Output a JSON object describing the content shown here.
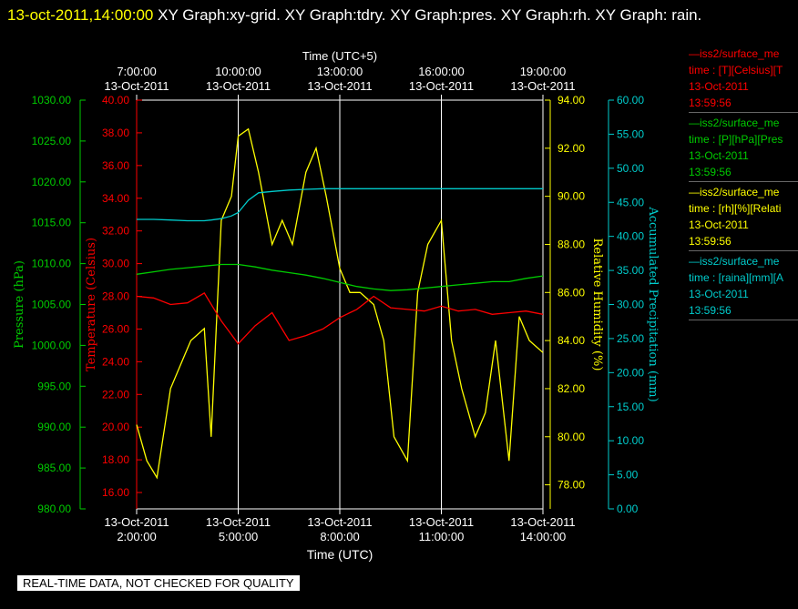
{
  "header": {
    "timestamp": "13-oct-2011,14:00:00",
    "title": "XY Graph:xy-grid.  XY Graph:tdry.  XY Graph:pres.  XY Graph:rh.  XY Graph: rain."
  },
  "warning": "REAL-TIME DATA, NOT CHECKED FOR QUALITY",
  "colors": {
    "pressure": "#00cc00",
    "temperature": "#ff0000",
    "humidity": "#ffff00",
    "rain": "#00cccc",
    "grid": "#ffffff"
  },
  "legend": [
    {
      "color": "#ff0000",
      "name": "—iss2/surface_me",
      "var": "time : [T][Celsius][T",
      "date": "13-Oct-2011",
      "time": "13:59:56"
    },
    {
      "color": "#00cc00",
      "name": "—iss2/surface_me",
      "var": "time : [P][hPa][Pres",
      "date": "13-Oct-2011",
      "time": "13:59:56"
    },
    {
      "color": "#ffff00",
      "name": "—iss2/surface_me",
      "var": "time : [rh][%][Relati",
      "date": "13-Oct-2011",
      "time": "13:59:56"
    },
    {
      "color": "#00cccc",
      "name": "—iss2/surface_me",
      "var": "time : [raina][mm][A",
      "date": "13-Oct-2011",
      "time": "13:59:56"
    }
  ],
  "chart_data": {
    "type": "line",
    "xlabel_bottom": "Time (UTC)",
    "xlabel_top": "Time (UTC+5)",
    "x_range_hours": [
      2,
      14
    ],
    "x_ticks_bottom": [
      {
        "h": 2,
        "date": "13-Oct-2011",
        "time": "2:00:00"
      },
      {
        "h": 5,
        "date": "13-Oct-2011",
        "time": "5:00:00"
      },
      {
        "h": 8,
        "date": "13-Oct-2011",
        "time": "8:00:00"
      },
      {
        "h": 11,
        "date": "13-Oct-2011",
        "time": "11:00:00"
      },
      {
        "h": 14,
        "date": "13-Oct-2011",
        "time": "14:00:00"
      }
    ],
    "x_ticks_top": [
      {
        "h": 2,
        "time": "7:00:00",
        "date": "13-Oct-2011"
      },
      {
        "h": 5,
        "time": "10:00:00",
        "date": "13-Oct-2011"
      },
      {
        "h": 8,
        "time": "13:00:00",
        "date": "13-Oct-2011"
      },
      {
        "h": 11,
        "time": "16:00:00",
        "date": "13-Oct-2011"
      },
      {
        "h": 14,
        "time": "19:00:00",
        "date": "13-Oct-2011"
      }
    ],
    "grid": true,
    "axes": {
      "pressure": {
        "label": "Pressure (hPa)",
        "range": [
          980,
          1030
        ],
        "ticks": [
          "980.00",
          "985.00",
          "990.00",
          "995.00",
          "1000.00",
          "1005.00",
          "1010.00",
          "1015.00",
          "1020.00",
          "1025.00",
          "1030.00"
        ]
      },
      "temperature": {
        "label": "Temperature (Celsius)",
        "range": [
          15,
          40
        ],
        "ticks": [
          "16.00",
          "18.00",
          "20.00",
          "22.00",
          "24.00",
          "26.00",
          "28.00",
          "30.00",
          "32.00",
          "34.00",
          "36.00",
          "38.00",
          "40.00"
        ]
      },
      "humidity": {
        "label": "Relative Humidity (%)",
        "range": [
          77,
          94
        ],
        "ticks": [
          "78.00",
          "80.00",
          "82.00",
          "84.00",
          "86.00",
          "88.00",
          "90.00",
          "92.00",
          "94.00"
        ]
      },
      "rain": {
        "label": "Accumulated Precipitation (mm)",
        "range": [
          0,
          60
        ],
        "ticks": [
          "0.00",
          "5.00",
          "10.00",
          "15.00",
          "20.00",
          "25.00",
          "30.00",
          "35.00",
          "40.00",
          "45.00",
          "50.00",
          "55.00",
          "60.00"
        ]
      }
    },
    "series": [
      {
        "key": "temperature",
        "color": "#ff0000",
        "x": [
          2,
          2.5,
          3,
          3.5,
          4,
          4.5,
          5,
          5.5,
          6,
          6.5,
          7,
          7.5,
          8,
          8.5,
          9,
          9.5,
          10,
          10.5,
          11,
          11.5,
          12,
          12.5,
          13,
          13.5,
          14
        ],
        "y": [
          28,
          27.9,
          27.5,
          27.6,
          28.2,
          26.5,
          25.1,
          26.2,
          27.0,
          25.3,
          25.6,
          26.0,
          26.7,
          27.2,
          28.0,
          27.3,
          27.2,
          27.1,
          27.4,
          27.1,
          27.2,
          26.9,
          27.0,
          27.1,
          26.9
        ]
      },
      {
        "key": "pressure",
        "color": "#00cc00",
        "x": [
          2,
          2.5,
          3,
          3.5,
          4,
          4.5,
          5,
          5.5,
          6,
          6.5,
          7,
          7.5,
          8,
          8.5,
          9,
          9.5,
          10,
          10.5,
          11,
          11.5,
          12,
          12.5,
          13,
          13.5,
          14
        ],
        "y": [
          1008.7,
          1009.0,
          1009.3,
          1009.5,
          1009.7,
          1009.9,
          1009.9,
          1009.6,
          1009.2,
          1008.9,
          1008.6,
          1008.2,
          1007.7,
          1007.2,
          1006.9,
          1006.7,
          1006.8,
          1007.0,
          1007.2,
          1007.4,
          1007.6,
          1007.8,
          1007.8,
          1008.2,
          1008.5
        ]
      },
      {
        "key": "humidity",
        "color": "#ffff00",
        "x": [
          2,
          2.3,
          2.6,
          3,
          3.3,
          3.6,
          4,
          4.2,
          4.5,
          4.8,
          5,
          5.3,
          5.6,
          6,
          6.3,
          6.6,
          7,
          7.3,
          7.6,
          8,
          8.3,
          8.6,
          9,
          9.3,
          9.6,
          10,
          10.3,
          10.6,
          11,
          11.3,
          11.6,
          12,
          12.3,
          12.6,
          13,
          13.3,
          13.6,
          14
        ],
        "y": [
          80.5,
          79.0,
          78.3,
          82,
          83,
          84,
          84.5,
          80,
          89,
          90,
          92.5,
          92.8,
          91,
          88,
          89,
          88,
          91,
          92,
          90,
          87,
          86,
          86,
          85.5,
          84,
          80,
          79,
          86,
          88,
          89,
          84,
          82,
          80,
          81,
          84,
          79,
          85,
          84,
          83.5
        ]
      },
      {
        "key": "rain",
        "color": "#00cccc",
        "x": [
          2,
          2.5,
          3,
          3.5,
          4,
          4.2,
          4.5,
          4.8,
          5,
          5.3,
          5.6,
          6,
          6.5,
          7,
          7.5,
          8,
          8.5,
          9,
          9.5,
          10,
          10.5,
          11,
          11.5,
          12,
          12.5,
          13,
          13.5,
          14
        ],
        "y": [
          42.5,
          42.5,
          42.4,
          42.3,
          42.3,
          42.4,
          42.6,
          43,
          43.5,
          45.3,
          46.4,
          46.6,
          46.8,
          46.9,
          47.0,
          47.0,
          47.0,
          47.0,
          47.0,
          47.0,
          47.0,
          47.0,
          47.0,
          47.0,
          47.0,
          47.0,
          47.0,
          47.0
        ]
      }
    ]
  }
}
